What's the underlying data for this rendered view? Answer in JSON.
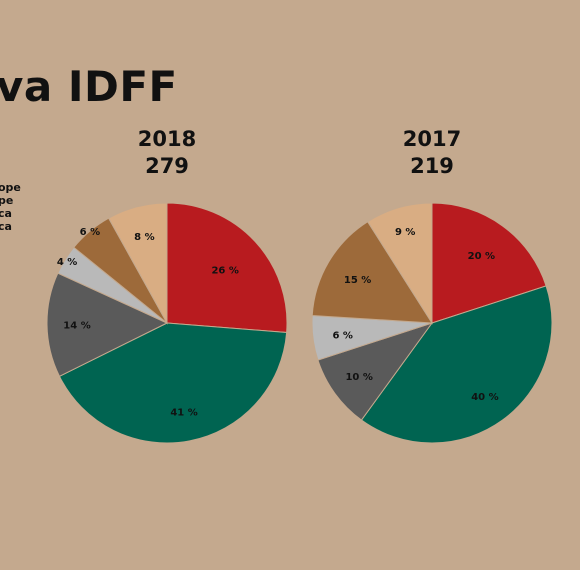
{
  "page": {
    "title": "va IDFF",
    "legend": [
      "ope",
      "pe",
      "ca",
      "ca"
    ]
  },
  "chart_data": [
    {
      "type": "pie",
      "title": "2018",
      "subtitle": "279",
      "slices": [
        {
          "label": "26 %",
          "value": 26,
          "color": "#b81b1f"
        },
        {
          "label": "41 %",
          "value": 41,
          "color": "#006451"
        },
        {
          "label": "14 %",
          "value": 14,
          "color": "#5a5a5a"
        },
        {
          "label": "4 %",
          "value": 4,
          "color": "#b9b9b9"
        },
        {
          "label": "6 %",
          "value": 6,
          "color": "#9d6a3a"
        },
        {
          "label": "8 %",
          "value": 8,
          "color": "#d9ad83"
        }
      ]
    },
    {
      "type": "pie",
      "title": "2017",
      "subtitle": "219",
      "slices": [
        {
          "label": "20 %",
          "value": 20,
          "color": "#b81b1f"
        },
        {
          "label": "40 %",
          "value": 40,
          "color": "#006451"
        },
        {
          "label": "10 %",
          "value": 10,
          "color": "#5a5a5a"
        },
        {
          "label": "6 %",
          "value": 6,
          "color": "#b9b9b9"
        },
        {
          "label": "15 %",
          "value": 15,
          "color": "#9d6a3a"
        },
        {
          "label": "9 %",
          "value": 9,
          "color": "#d9ad83"
        }
      ]
    }
  ]
}
